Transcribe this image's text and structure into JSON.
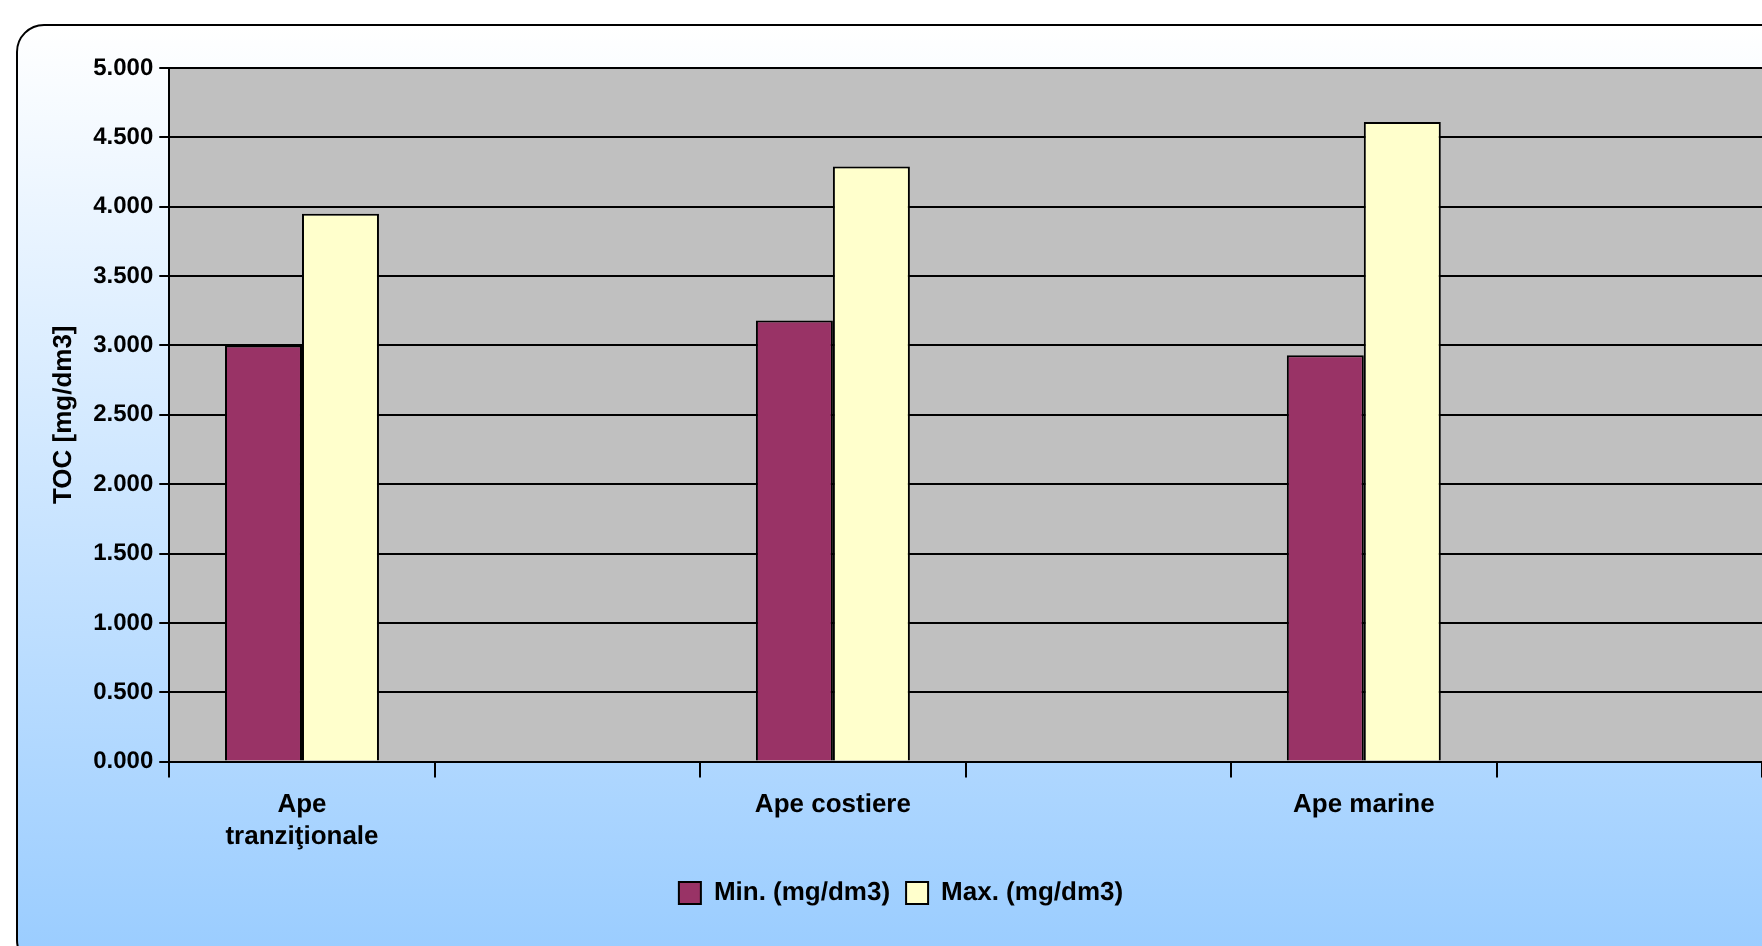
{
  "chart_data": {
    "type": "bar",
    "ylabel": "TOC [mg/dm3]",
    "categories": [
      "Ape\ntranziţionale",
      null,
      "Ape costiere",
      null,
      "Ape marine",
      null
    ],
    "series": [
      {
        "name": "Min. (mg/dm3)",
        "color": "#993366",
        "values": [
          3.0,
          null,
          3.18,
          null,
          2.93,
          null
        ]
      },
      {
        "name": "Max. (mg/dm3)",
        "color": "#ffffcc",
        "values": [
          3.95,
          null,
          4.29,
          null,
          4.61,
          null
        ]
      }
    ],
    "ylim": [
      0,
      5
    ],
    "yticks": [
      {
        "value": 0,
        "label": "0.000"
      },
      {
        "value": 0.5,
        "label": "0.500"
      },
      {
        "value": 1,
        "label": "1.000"
      },
      {
        "value": 1.5,
        "label": "1.500"
      },
      {
        "value": 2,
        "label": "2.000"
      },
      {
        "value": 2.5,
        "label": "2.500"
      },
      {
        "value": 3,
        "label": "3.000"
      },
      {
        "value": 3.5,
        "label": "3.500"
      },
      {
        "value": 4,
        "label": "4.000"
      },
      {
        "value": 4.5,
        "label": "4.500"
      },
      {
        "value": 5,
        "label": "5.000"
      }
    ],
    "grid": "y",
    "legend": "bottom"
  }
}
